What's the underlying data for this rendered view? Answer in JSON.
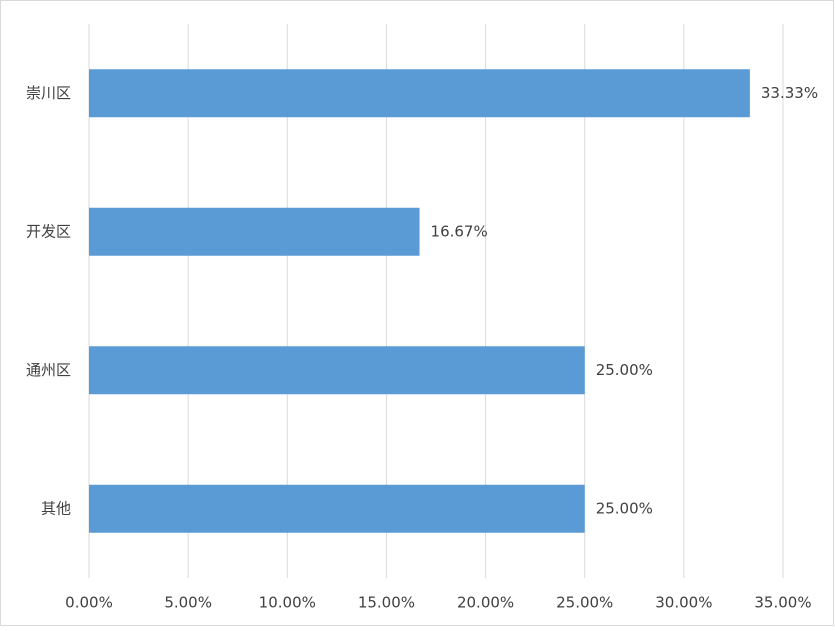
{
  "chart_data": {
    "type": "barh",
    "categories": [
      "崇川区",
      "开发区",
      "通州区",
      "其他"
    ],
    "values": [
      33.33,
      16.67,
      25,
      25
    ],
    "value_labels": [
      "33.33%",
      "16.67%",
      "25.00%",
      "25.00%"
    ],
    "color": "#5b9bd5",
    "xlim": [
      0,
      35
    ],
    "xticks": [
      {
        "value": 0,
        "label": "0.00%"
      },
      {
        "value": 5,
        "label": "5.00%"
      },
      {
        "value": 10,
        "label": "10.00%"
      },
      {
        "value": 15,
        "label": "15.00%"
      },
      {
        "value": 20,
        "label": "20.00%"
      },
      {
        "value": 25,
        "label": "25.00%"
      },
      {
        "value": 30,
        "label": "30.00%"
      },
      {
        "value": 35,
        "label": "35.00%"
      }
    ],
    "grid": true
  }
}
